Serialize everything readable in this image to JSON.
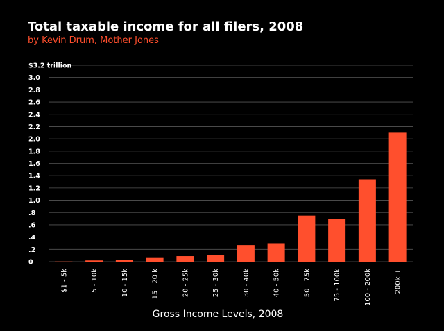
{
  "chart_data": {
    "type": "bar",
    "title": "Total taxable income for all filers, 2008",
    "subtitle": "by Kevin Drum, Mother Jones",
    "xlabel": "Gross Income Levels, 2008",
    "ylabel": "",
    "ylim": [
      0,
      3.2
    ],
    "y_ticks": [
      {
        "value": 0,
        "label": "0"
      },
      {
        "value": 0.2,
        "label": ".2"
      },
      {
        "value": 0.4,
        "label": ".4"
      },
      {
        "value": 0.6,
        "label": ".6"
      },
      {
        "value": 0.8,
        "label": ".8"
      },
      {
        "value": 1.0,
        "label": "1.0"
      },
      {
        "value": 1.2,
        "label": "1.2"
      },
      {
        "value": 1.4,
        "label": "1.4"
      },
      {
        "value": 1.6,
        "label": "1.6"
      },
      {
        "value": 1.8,
        "label": "1.8"
      },
      {
        "value": 2.0,
        "label": "2.0"
      },
      {
        "value": 2.2,
        "label": "2.2"
      },
      {
        "value": 2.4,
        "label": "2.4"
      },
      {
        "value": 2.6,
        "label": "2.6"
      },
      {
        "value": 2.8,
        "label": "2.8"
      },
      {
        "value": 3.0,
        "label": "3.0"
      },
      {
        "value": 3.2,
        "label": "$3.2 trillion"
      }
    ],
    "categories": [
      "$1 - 5k",
      "5 - 10k",
      "10 - 15k",
      "15 - 20 k",
      "20 - 25k",
      "25 - 30k",
      "30 - 40k",
      "40 - 50k",
      "50 - 75k",
      "75 - 100k",
      "100 - 200k",
      "200k +"
    ],
    "values": [
      0.003,
      0.02,
      0.03,
      0.06,
      0.09,
      0.11,
      0.27,
      0.3,
      0.75,
      0.69,
      1.34,
      2.11
    ],
    "grid": true,
    "legend": "none",
    "colors": {
      "background": "#000000",
      "bar": "#ff4f2d",
      "subtitle": "#ff4f2d",
      "text": "#ffffff",
      "grid": "#555555"
    }
  }
}
